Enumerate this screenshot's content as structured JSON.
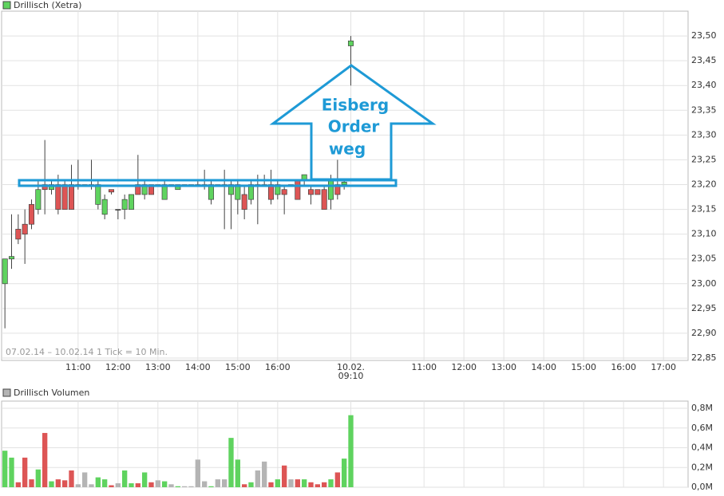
{
  "chart_data": [
    {
      "type": "candlestick",
      "title": "Drillisch (Xetra)",
      "subtitle": "07.02.14 – 10.02.14   1 Tick = 10 Min.",
      "legend_color": "#5fd35f",
      "annotation": [
        "Eisberg",
        "Order",
        "weg"
      ],
      "annotation_color": "#1e9ad6",
      "up_color": "#5fd35f",
      "down_color": "#dd5555",
      "grid": true,
      "x": [
        0,
        1,
        2,
        3,
        4,
        5,
        6,
        7,
        8,
        9,
        10,
        11,
        12,
        13,
        14,
        15,
        16,
        17,
        18,
        19,
        20,
        21,
        22,
        23,
        24,
        25,
        26,
        27,
        28,
        29,
        30,
        31,
        32,
        33,
        34,
        35,
        36,
        37,
        38,
        39,
        40,
        41,
        42,
        43,
        44,
        45,
        46,
        47,
        48,
        49,
        50,
        51,
        52
      ],
      "open": [
        23.0,
        23.05,
        23.11,
        23.12,
        23.16,
        23.15,
        23.2,
        23.19,
        23.2,
        23.2,
        23.2,
        23.2,
        23.2,
        23.2,
        23.16,
        23.14,
        23.19,
        23.15,
        23.15,
        23.15,
        23.2,
        23.18,
        23.2,
        23.2,
        23.17,
        23.2,
        23.19,
        23.2,
        23.2,
        23.2,
        23.2,
        23.17,
        23.2,
        23.2,
        23.18,
        23.17,
        23.18,
        23.17,
        23.2,
        23.2,
        23.2,
        23.18,
        23.19,
        23.2,
        23.21,
        23.21,
        23.19,
        23.19,
        23.19,
        23.17,
        23.2,
        23.2,
        23.48
      ],
      "high": [
        23.05,
        23.14,
        23.14,
        23.15,
        23.17,
        23.21,
        23.29,
        23.21,
        23.22,
        23.21,
        23.24,
        23.25,
        23.2,
        23.25,
        23.21,
        23.18,
        23.19,
        23.15,
        23.18,
        23.18,
        23.26,
        23.21,
        23.2,
        23.2,
        23.21,
        23.2,
        23.2,
        23.2,
        23.2,
        23.21,
        23.23,
        23.21,
        23.2,
        23.23,
        23.21,
        23.21,
        23.2,
        23.21,
        23.22,
        23.22,
        23.23,
        23.21,
        23.2,
        23.2,
        23.21,
        23.22,
        23.2,
        23.19,
        23.2,
        23.22,
        23.25,
        23.21,
        23.5
      ],
      "low": [
        22.91,
        23.03,
        23.08,
        23.04,
        23.11,
        23.14,
        23.14,
        23.18,
        23.14,
        23.15,
        23.15,
        23.19,
        23.2,
        23.19,
        23.15,
        23.13,
        23.18,
        23.13,
        23.13,
        23.15,
        23.18,
        23.17,
        23.18,
        23.2,
        23.17,
        23.2,
        23.19,
        23.2,
        23.2,
        23.2,
        23.19,
        23.16,
        23.2,
        23.11,
        23.11,
        23.14,
        23.13,
        23.16,
        23.12,
        23.2,
        23.16,
        23.17,
        23.14,
        23.2,
        23.17,
        23.2,
        23.16,
        23.18,
        23.15,
        23.15,
        23.17,
        23.19,
        23.4
      ],
      "close": [
        23.05,
        23.055,
        23.09,
        23.1,
        23.12,
        23.19,
        23.19,
        23.2,
        23.15,
        23.15,
        23.15,
        23.2,
        23.2,
        23.2,
        23.2,
        23.17,
        23.185,
        23.15,
        23.17,
        23.18,
        23.18,
        23.2,
        23.18,
        23.2,
        23.2,
        23.2,
        23.2,
        23.2,
        23.2,
        23.2,
        23.2,
        23.2,
        23.2,
        23.2,
        23.2,
        23.2,
        23.15,
        23.2,
        23.2,
        23.2,
        23.17,
        23.2,
        23.18,
        23.2,
        23.17,
        23.22,
        23.18,
        23.18,
        23.15,
        23.21,
        23.18,
        23.205,
        23.49
      ],
      "xlim": [
        -0.5,
        102.7
      ],
      "xticks": [
        {
          "value": 11,
          "label": "11:00"
        },
        {
          "value": 17,
          "label": "12:00"
        },
        {
          "value": 23,
          "label": "13:00"
        },
        {
          "value": 29,
          "label": "14:00"
        },
        {
          "value": 35,
          "label": "15:00"
        },
        {
          "value": 41,
          "label": "16:00"
        },
        {
          "value": 52,
          "label": "10.02.",
          "sublabel": "09:10"
        },
        {
          "value": 63,
          "label": "11:00"
        },
        {
          "value": 69,
          "label": "12:00"
        },
        {
          "value": 75,
          "label": "13:00"
        },
        {
          "value": 81,
          "label": "14:00"
        },
        {
          "value": 87,
          "label": "15:00"
        },
        {
          "value": 93,
          "label": "16:00"
        },
        {
          "value": 99,
          "label": "17:00"
        }
      ],
      "ylim": [
        22.85,
        23.55
      ],
      "yticks": [
        {
          "value": 22.85,
          "label": "22,85"
        },
        {
          "value": 22.9,
          "label": "22,90"
        },
        {
          "value": 22.95,
          "label": "22,95"
        },
        {
          "value": 23.0,
          "label": "23,00"
        },
        {
          "value": 23.05,
          "label": "23,05"
        },
        {
          "value": 23.1,
          "label": "23,10"
        },
        {
          "value": 23.15,
          "label": "23,15"
        },
        {
          "value": 23.2,
          "label": "23,20"
        },
        {
          "value": 23.25,
          "label": "23,25"
        },
        {
          "value": 23.3,
          "label": "23,30"
        },
        {
          "value": 23.35,
          "label": "23,35"
        },
        {
          "value": 23.4,
          "label": "23,40"
        },
        {
          "value": 23.45,
          "label": "23,45"
        },
        {
          "value": 23.5,
          "label": "23,50"
        }
      ]
    },
    {
      "type": "volume",
      "title": "Drillisch Volumen",
      "legend_color": "#b4b4b4",
      "flat_color": "#b4b4b4",
      "grid": true,
      "values": [
        0.37,
        0.3,
        0.05,
        0.3,
        0.08,
        0.18,
        0.55,
        0.06,
        0.08,
        0.07,
        0.17,
        0.03,
        0.15,
        0.03,
        0.1,
        0.08,
        0.02,
        0.04,
        0.17,
        0.04,
        0.04,
        0.15,
        0.05,
        0.07,
        0.06,
        0.03,
        0.01,
        0.01,
        0.01,
        0.28,
        0.06,
        0.01,
        0.08,
        0.08,
        0.5,
        0.28,
        0.03,
        0.05,
        0.17,
        0.26,
        0.05,
        0.08,
        0.22,
        0.08,
        0.08,
        0.08,
        0.05,
        0.03,
        0.05,
        0.08,
        0.15,
        0.29,
        0.73
      ],
      "ylim": [
        0,
        0.8
      ],
      "yticks": [
        {
          "value": 0,
          "label": "0,0M"
        },
        {
          "value": 0.2,
          "label": "0,2M"
        },
        {
          "value": 0.4,
          "label": "0,4M"
        },
        {
          "value": 0.6,
          "label": "0,6M"
        },
        {
          "value": 0.8,
          "label": "0,8M"
        }
      ]
    }
  ]
}
